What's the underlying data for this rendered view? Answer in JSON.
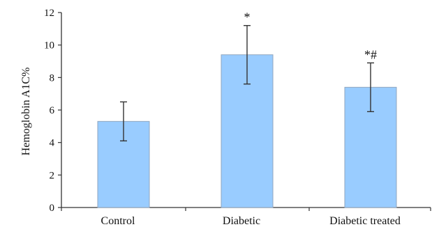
{
  "chart_data": {
    "type": "bar",
    "categories": [
      "Control",
      "Diabetic",
      "Diabetic treated"
    ],
    "values": [
      5.3,
      9.4,
      7.4
    ],
    "error_bars": [
      {
        "low": 4.1,
        "high": 6.5
      },
      {
        "low": 7.6,
        "high": 11.2
      },
      {
        "low": 5.9,
        "high": 8.9
      }
    ],
    "annotations": [
      "",
      "*",
      "*#"
    ],
    "title": "",
    "xlabel": "",
    "ylabel": "Hemoglobin A1C%",
    "ylim": [
      0,
      12
    ],
    "yticks": [
      0,
      2,
      4,
      6,
      8,
      10,
      12
    ],
    "grid": false,
    "legend": "none",
    "bar_color": "#99ccff",
    "bar_edge_color": "#8fa6bf",
    "axis_color": "#333333"
  }
}
